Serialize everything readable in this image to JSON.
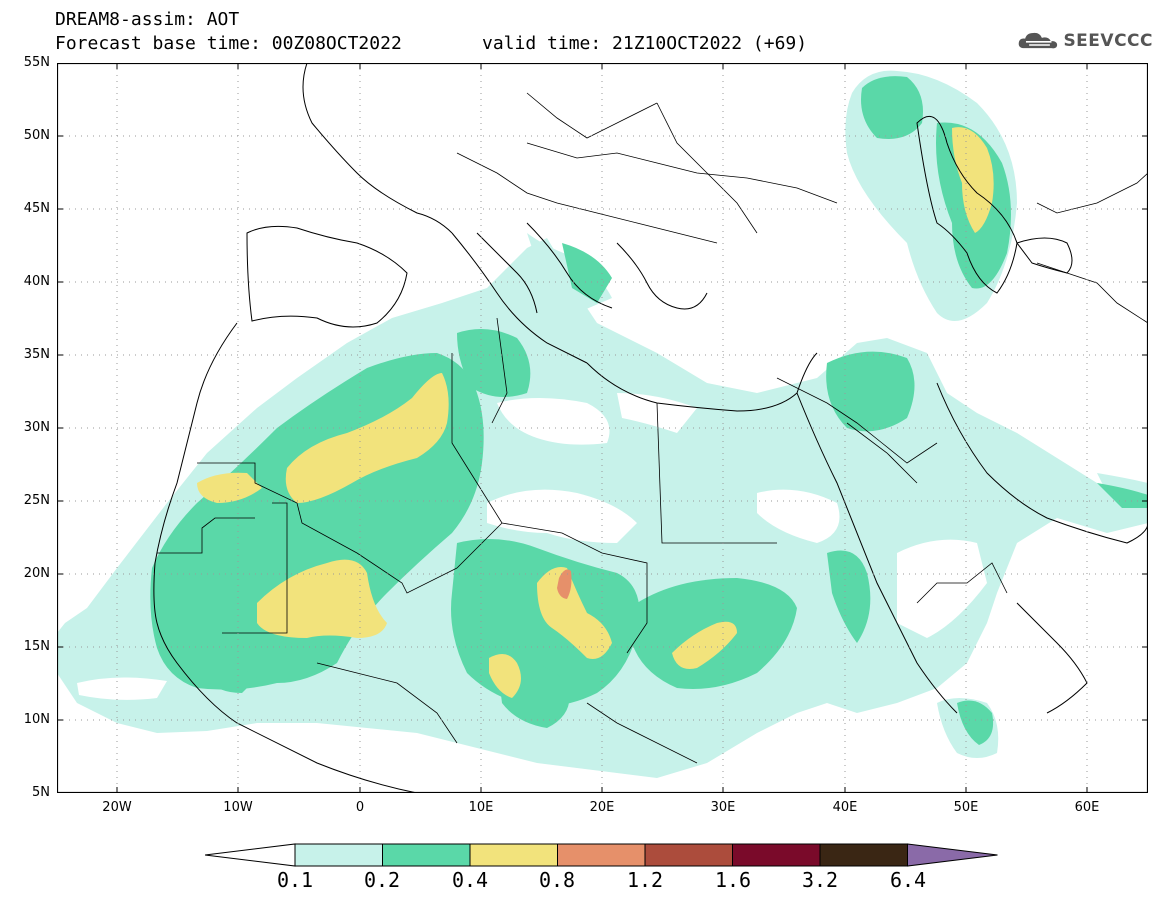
{
  "title_line1": "DREAM8-assim: AOT",
  "title_line2": "Forecast base time: 00Z08OCT2022",
  "title_line3": "valid time: 21Z10OCT2022 (+69)",
  "logo_text": "SEEVCCC",
  "logo_icon": "cloud-icon",
  "map": {
    "lon_range": [
      -25,
      65
    ],
    "lat_range": [
      5,
      55
    ],
    "grid": "dotted",
    "y_ticks": [
      "55N",
      "50N",
      "45N",
      "40N",
      "35N",
      "30N",
      "25N",
      "20N",
      "15N",
      "10N",
      "5N"
    ],
    "x_ticks": [
      "20W",
      "10W",
      "0",
      "10E",
      "20E",
      "30E",
      "40E",
      "50E",
      "60E"
    ]
  },
  "colorbar": {
    "levels": [
      "0.1",
      "0.2",
      "0.4",
      "0.8",
      "1.2",
      "1.6",
      "3.2",
      "6.4"
    ],
    "colors": [
      "#ffffff",
      "#c7f2ea",
      "#5ad8a8",
      "#f2e37c",
      "#e6906a",
      "#ac4c3c",
      "#7a0a2a",
      "#3a2614",
      "#8a6aa8"
    ]
  }
}
